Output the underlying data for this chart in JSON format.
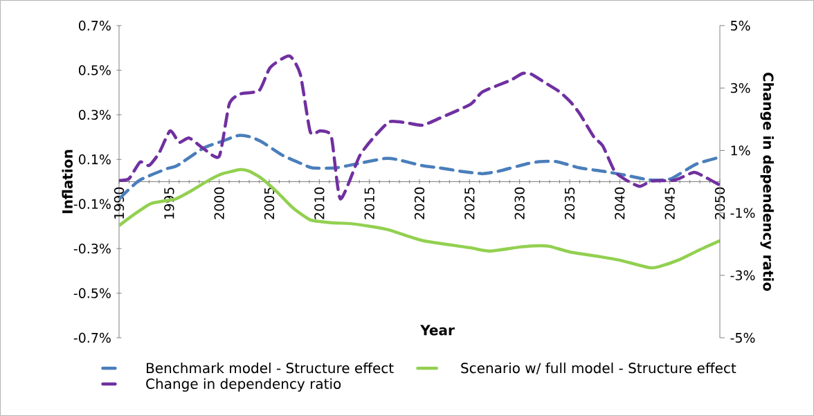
{
  "chart_data": {
    "type": "line",
    "xlabel": "Year",
    "ylabel": "Inflation",
    "y2label": "Change in dependency ratio",
    "xlim": [
      1990,
      2050
    ],
    "xticks": [
      1990,
      1995,
      2000,
      2005,
      2010,
      2015,
      2020,
      2025,
      2030,
      2035,
      2040,
      2045,
      2050
    ],
    "ylim": [
      -0.7,
      0.7
    ],
    "yticks": [
      {
        "value": -0.7,
        "label": "-0.7%"
      },
      {
        "value": -0.5,
        "label": "-0.5%"
      },
      {
        "value": -0.3,
        "label": "-0.3%"
      },
      {
        "value": -0.1,
        "label": "-0.1%"
      },
      {
        "value": 0.1,
        "label": "0.1%"
      },
      {
        "value": 0.3,
        "label": "0.3%"
      },
      {
        "value": 0.5,
        "label": "0.5%"
      },
      {
        "value": 0.7,
        "label": "0.7%"
      }
    ],
    "y2lim": [
      -5,
      5
    ],
    "y2ticks": [
      {
        "value": -5,
        "label": "-5%"
      },
      {
        "value": -3,
        "label": "-3%"
      },
      {
        "value": -1,
        "label": "-1%"
      },
      {
        "value": 1,
        "label": "1%"
      },
      {
        "value": 3,
        "label": "3%"
      },
      {
        "value": 5,
        "label": "5%"
      }
    ],
    "legend": "bottom",
    "series": [
      {
        "name": "Benchmark model - Structure effect",
        "color": "#4a7ebb",
        "line_style": "dashed",
        "x": [
          1990,
          1992,
          1994.7,
          1995.8,
          1998.4,
          2000.2,
          2001.9,
          2003,
          2004.2,
          2006.3,
          2008.1,
          2009.3,
          2011.6,
          2013.5,
          2016.5,
          2017.7,
          2020.3,
          2022,
          2024.4,
          2026.3,
          2027.9,
          2030.7,
          2032,
          2033.7,
          2036,
          2038.3,
          2040.7,
          2043,
          2045.1,
          2047.6,
          2050
        ],
        "values": [
          -0.078,
          0.005,
          0.057,
          0.072,
          0.15,
          0.18,
          0.207,
          0.202,
          0.18,
          0.119,
          0.083,
          0.062,
          0.062,
          0.078,
          0.104,
          0.1,
          0.072,
          0.062,
          0.045,
          0.036,
          0.047,
          0.08,
          0.09,
          0.09,
          0.062,
          0.047,
          0.028,
          0.008,
          0.013,
          0.078,
          0.11
        ]
      },
      {
        "name": "Scenario w/ full model - Structure effect",
        "color": "#92d050",
        "line_style": "solid",
        "x": [
          1990,
          1991.4,
          1993.2,
          1995.6,
          1997.2,
          1998.9,
          2000.2,
          2002.1,
          2003,
          2004.2,
          2005.8,
          2007.4,
          2009.1,
          2011,
          2013.3,
          2015.3,
          2017,
          2020.3,
          2025,
          2027,
          2030,
          2032,
          2033,
          2035,
          2038,
          2040,
          2043,
          2044,
          2046,
          2048,
          2050
        ],
        "values": [
          -0.197,
          -0.15,
          -0.098,
          -0.078,
          -0.041,
          0.005,
          0.034,
          0.054,
          0.047,
          0.016,
          -0.047,
          -0.119,
          -0.171,
          -0.183,
          -0.189,
          -0.202,
          -0.217,
          -0.264,
          -0.296,
          -0.311,
          -0.293,
          -0.287,
          -0.29,
          -0.315,
          -0.336,
          -0.352,
          -0.386,
          -0.38,
          -0.349,
          -0.305,
          -0.265
        ]
      },
      {
        "name": "Change in dependency ratio",
        "color": "#7030a0",
        "line_style": "dashed",
        "axis": "y2",
        "x": [
          1990,
          1991,
          1992.1,
          1993,
          1994,
          1995.1,
          1996,
          1997,
          1998.4,
          2000,
          2001,
          2002.1,
          2004,
          2005.1,
          2007,
          2008.1,
          2009.1,
          2010.1,
          2011.2,
          2012.1,
          2014,
          2015.3,
          2017,
          2018.8,
          2020.3,
          2022,
          2025.1,
          2026.3,
          2029.1,
          2030.3,
          2031.2,
          2032.5,
          2034,
          2035.1,
          2036,
          2037.4,
          2038.3,
          2039.5,
          2040.7,
          2042,
          2043.2,
          2045.5,
          2047.4,
          2048.5,
          2050
        ],
        "values": [
          0.04,
          0.1,
          0.63,
          0.52,
          0.92,
          1.63,
          1.26,
          1.4,
          1.07,
          0.81,
          2.48,
          2.81,
          2.92,
          3.66,
          4.03,
          3.44,
          1.59,
          1.63,
          1.44,
          -0.55,
          0.81,
          1.37,
          1.92,
          1.88,
          1.81,
          2.03,
          2.48,
          2.88,
          3.25,
          3.47,
          3.44,
          3.18,
          2.88,
          2.55,
          2.18,
          1.44,
          1.15,
          0.33,
          0.04,
          -0.15,
          0.02,
          0.05,
          0.3,
          0.15,
          -0.11
        ]
      }
    ]
  }
}
